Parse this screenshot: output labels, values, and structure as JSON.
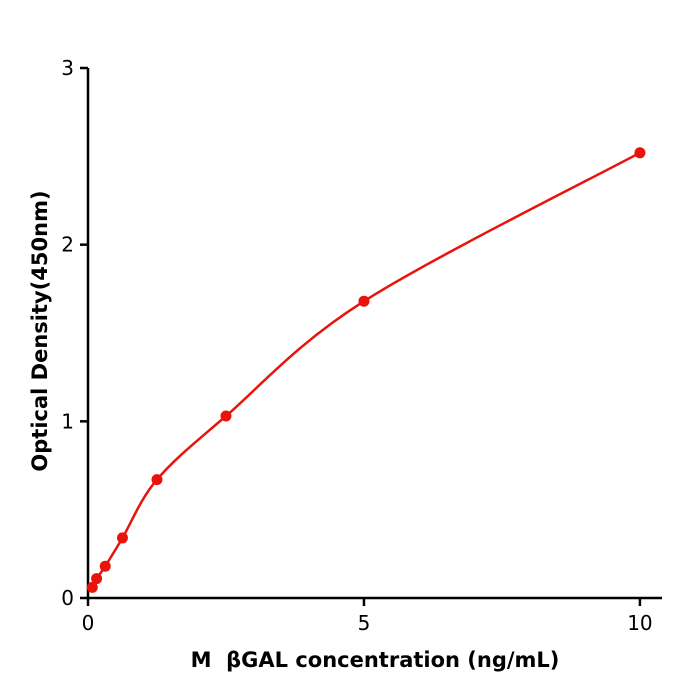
{
  "chart_data": {
    "type": "line",
    "title": "",
    "xlabel": "M  βGAL concentration (ng/mL)",
    "ylabel": "Optical Density(450nm)",
    "x": [
      0.078,
      0.156,
      0.3125,
      0.625,
      1.25,
      2.5,
      5,
      10
    ],
    "y": [
      0.06,
      0.11,
      0.18,
      0.34,
      0.67,
      1.03,
      1.68,
      2.52
    ],
    "xlim": [
      0,
      10.4
    ],
    "ylim": [
      0,
      3
    ],
    "xticks": [
      0,
      5,
      10
    ],
    "yticks": [
      0,
      1,
      2,
      3
    ],
    "grid": false,
    "legend_position": "none",
    "line_color": "#e8130b",
    "marker_color": "#e8130b",
    "axis_color": "#000000",
    "marker": "circle"
  }
}
